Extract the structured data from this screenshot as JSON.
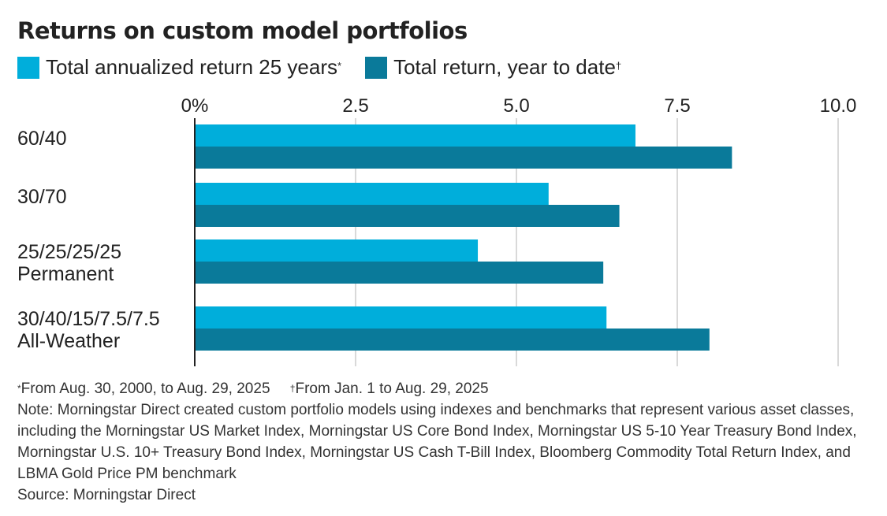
{
  "chart_data": {
    "type": "bar",
    "orientation": "horizontal",
    "title": "Returns on custom model portfolios",
    "categories": [
      [
        "60/40"
      ],
      [
        "30/70"
      ],
      [
        "25/25/25/25",
        "Permanent"
      ],
      [
        "30/40/15/7.5/7.5",
        "All-Weather"
      ]
    ],
    "series": [
      {
        "name": "Total annualized return 25 years",
        "marker": "*",
        "color": "#00aedb",
        "values": [
          6.85,
          5.5,
          4.4,
          6.4
        ]
      },
      {
        "name": "Total return, year to date",
        "marker": "†",
        "color": "#0a7a9a",
        "values": [
          8.35,
          6.6,
          6.35,
          8.0
        ]
      }
    ],
    "xlim": [
      0,
      10
    ],
    "ticks": [
      0,
      2.5,
      5.0,
      7.5,
      10.0
    ],
    "tick_labels": [
      "0%",
      "2.5",
      "5.0",
      "7.5",
      "10.0"
    ],
    "grid": true,
    "legend_position": "top-left"
  },
  "footnotes": [
    {
      "mark": "*",
      "text": "From Aug. 30, 2000, to Aug. 29, 2025"
    },
    {
      "mark": "†",
      "text": "From Jan. 1 to Aug. 29, 2025"
    }
  ],
  "note": "Note: Morningstar Direct created custom portfolio models using indexes and benchmarks that represent various asset classes, including the Morningstar US Market Index, Morningstar US Core Bond Index, Morningstar US 5-10 Year Treasury Bond Index, Morningstar U.S. 10+ Treasury Bond Index, Morningstar US Cash T-Bill Index, Bloomberg Commodity Total Return Index, and LBMA Gold Price PM benchmark",
  "source": "Source: Morningstar Direct"
}
